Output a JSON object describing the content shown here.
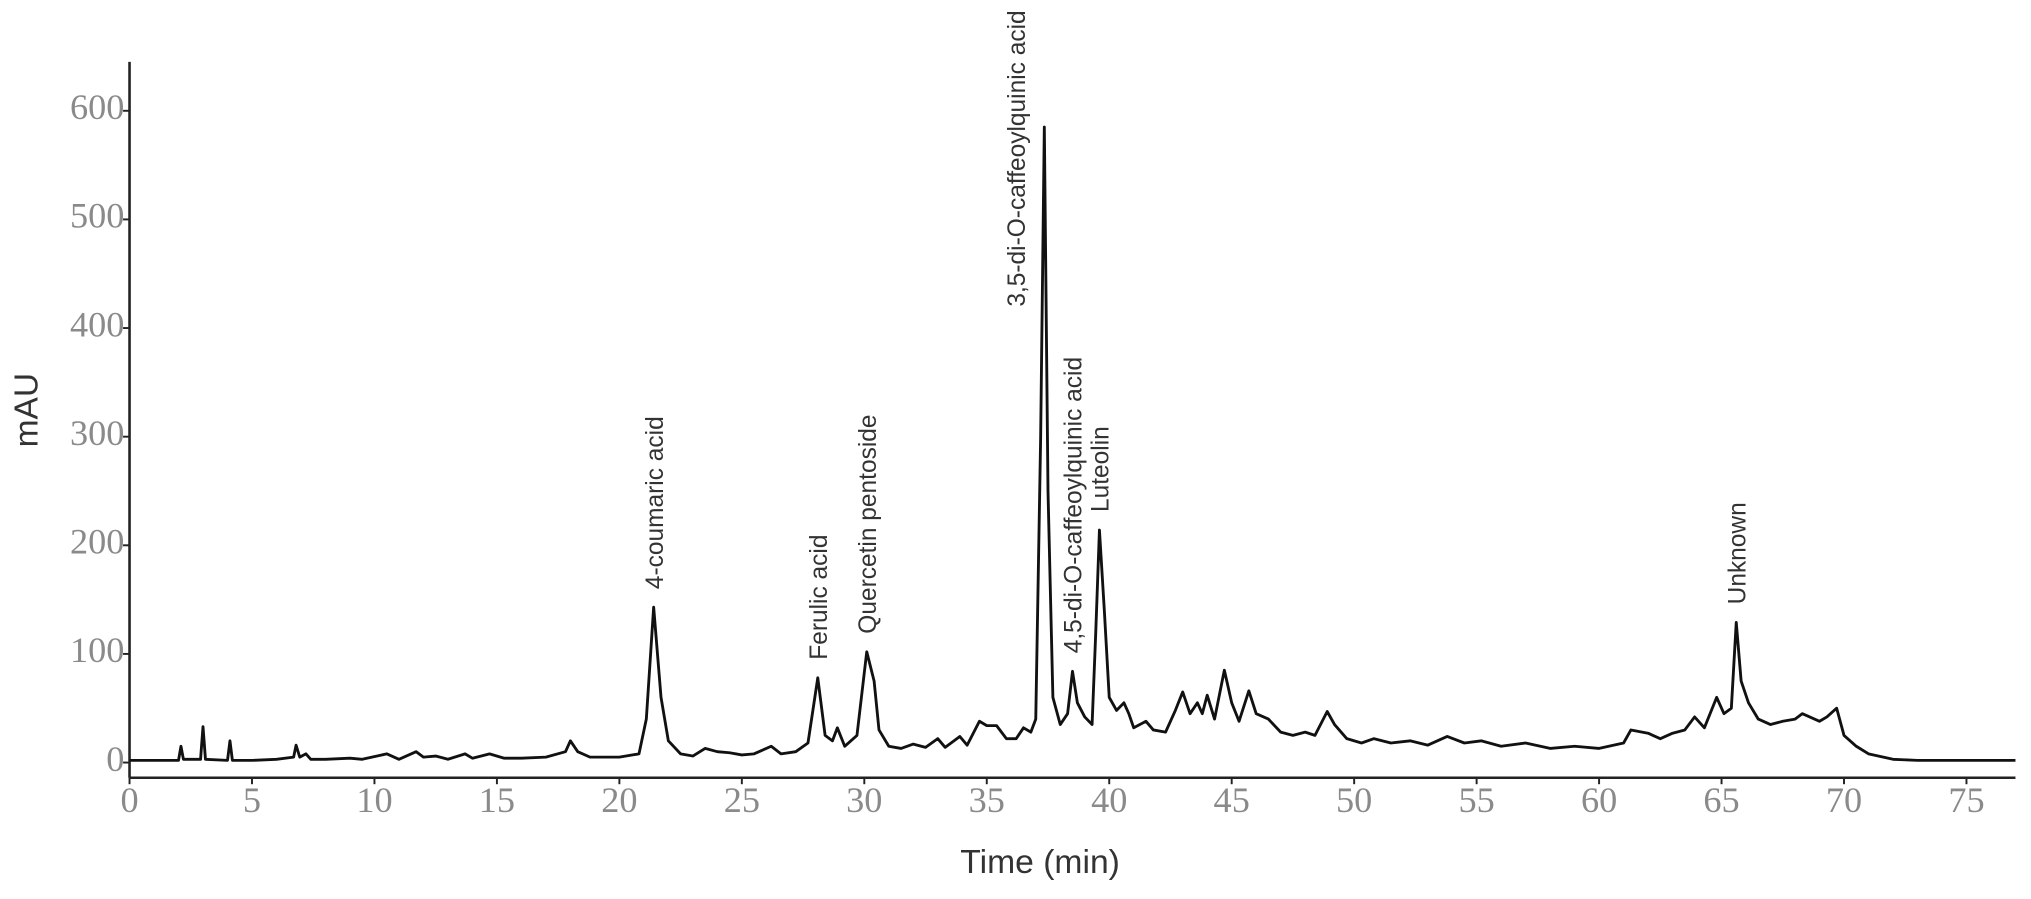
{
  "chart_data": {
    "type": "line",
    "x_label": "Time (min)",
    "y_label": "mAU",
    "xlim": [
      0,
      77
    ],
    "ylim": [
      -14,
      645
    ],
    "xticks": [
      0,
      5,
      10,
      15,
      20,
      25,
      30,
      35,
      40,
      45,
      50,
      55,
      60,
      65,
      70,
      75
    ],
    "yticks": [
      0,
      100,
      200,
      300,
      400,
      500,
      600
    ],
    "color": "#111111",
    "series": [
      {
        "x": [
          0,
          2.0,
          2.1,
          2.2,
          2.9,
          3.0,
          3.1,
          4.0,
          4.1,
          4.2,
          5,
          6,
          6.7,
          6.8,
          6.95,
          7.2,
          7.4,
          8,
          9,
          9.5,
          10.5,
          11,
          11.7,
          12,
          12.5,
          13,
          13.7,
          14,
          14.7,
          15.3,
          16,
          17,
          17.8,
          18.0,
          18.3,
          18.8,
          20,
          20.8,
          21.1,
          21.4,
          21.7,
          22,
          22.5,
          23,
          23.5,
          24,
          24.5,
          25,
          25.5,
          26.2,
          26.6,
          27.2,
          27.7,
          28.1,
          28.4,
          28.7,
          28.9,
          29.2,
          29.7,
          30.1,
          30.4,
          30.6,
          31,
          31.5,
          32,
          32.5,
          33,
          33.3,
          33.9,
          34.2,
          34.7,
          35,
          35.4,
          35.8,
          36.2,
          36.5,
          36.8,
          37.0,
          37.2,
          37.35,
          37.5,
          37.7,
          38.0,
          38.3,
          38.5,
          38.7,
          39,
          39.3,
          39.45,
          39.6,
          39.8,
          40,
          40.3,
          40.6,
          40.8,
          41,
          41.5,
          41.8,
          42.3,
          42.7,
          43,
          43.3,
          43.6,
          43.8,
          44,
          44.3,
          44.7,
          45,
          45.3,
          45.7,
          46,
          46.5,
          47,
          47.5,
          48,
          48.4,
          48.9,
          49.2,
          49.7,
          50.3,
          50.8,
          51.5,
          52.3,
          53,
          53.8,
          54.5,
          55.2,
          56,
          57,
          58,
          59,
          60,
          61,
          61.3,
          62,
          62.5,
          63,
          63.5,
          63.9,
          64.3,
          64.8,
          65.1,
          65.4,
          65.6,
          65.8,
          66.1,
          66.5,
          67,
          67.5,
          68,
          68.3,
          68.6,
          69,
          69.3,
          69.7,
          70,
          70.5,
          71,
          72,
          73,
          77
        ],
        "values": [
          2,
          2,
          15,
          3,
          3,
          33,
          3,
          2,
          20,
          2,
          2,
          3,
          5,
          16,
          5,
          8,
          3,
          3,
          4,
          3,
          8,
          3,
          10,
          5,
          6,
          3,
          8,
          4,
          8,
          4,
          4,
          5,
          10,
          20,
          10,
          5,
          5,
          8,
          40,
          143,
          60,
          20,
          8,
          6,
          13,
          10,
          9,
          7,
          8,
          15,
          8,
          10,
          18,
          78,
          25,
          20,
          32,
          15,
          25,
          102,
          75,
          30,
          15,
          13,
          17,
          14,
          22,
          14,
          24,
          16,
          38,
          34,
          34,
          22,
          22,
          32,
          28,
          40,
          300,
          585,
          250,
          60,
          35,
          45,
          84,
          55,
          42,
          35,
          120,
          214,
          140,
          60,
          48,
          55,
          45,
          32,
          38,
          30,
          28,
          48,
          65,
          45,
          55,
          45,
          62,
          40,
          85,
          55,
          38,
          66,
          45,
          40,
          28,
          25,
          28,
          25,
          47,
          35,
          22,
          18,
          22,
          18,
          20,
          16,
          24,
          18,
          20,
          15,
          18,
          13,
          15,
          13,
          18,
          30,
          27,
          22,
          27,
          30,
          42,
          32,
          60,
          45,
          50,
          129,
          75,
          55,
          40,
          35,
          38,
          40,
          45,
          42,
          38,
          42,
          50,
          25,
          15,
          8,
          3,
          2,
          2
        ]
      }
    ],
    "annotations": [
      {
        "text": "4-coumaric acid",
        "x": 21.4
      },
      {
        "text": "Ferulic acid",
        "x": 28.1
      },
      {
        "text": "Quercetin pentoside",
        "x": 30.1
      },
      {
        "text": "3,5-di-O-caffeoylquinic acid",
        "x": 37.35
      },
      {
        "text": "4,5-di-O-caffeoylquinic acid",
        "x": 38.5
      },
      {
        "text": "Luteolin",
        "x": 39.6
      },
      {
        "text": "Unknown",
        "x": 65.6
      }
    ]
  }
}
